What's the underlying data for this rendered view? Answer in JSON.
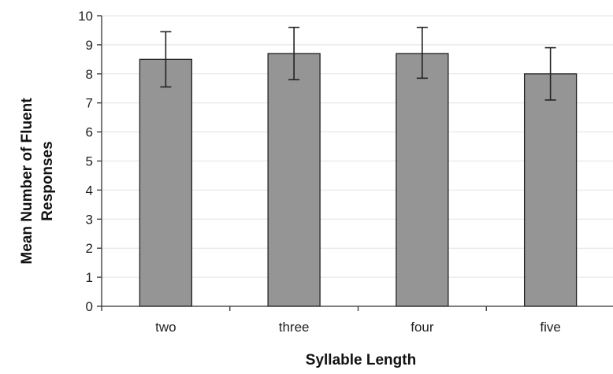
{
  "chart_data": {
    "type": "bar",
    "categories": [
      "two",
      "three",
      "four",
      "five"
    ],
    "values": [
      8.5,
      8.7,
      8.7,
      8.0
    ],
    "error_low": [
      7.55,
      7.8,
      7.85,
      7.1
    ],
    "error_high": [
      9.45,
      9.6,
      9.6,
      8.9
    ],
    "xlabel": "Syllable Length",
    "ylabel_lines": [
      "Mean Number of Fluent",
      "Responses"
    ],
    "ylim": [
      0,
      10
    ],
    "yticks": [
      0,
      1,
      2,
      3,
      4,
      5,
      6,
      7,
      8,
      9,
      10
    ],
    "grid": true,
    "colors": {
      "bar": "#959595",
      "outline": "#222222"
    }
  }
}
